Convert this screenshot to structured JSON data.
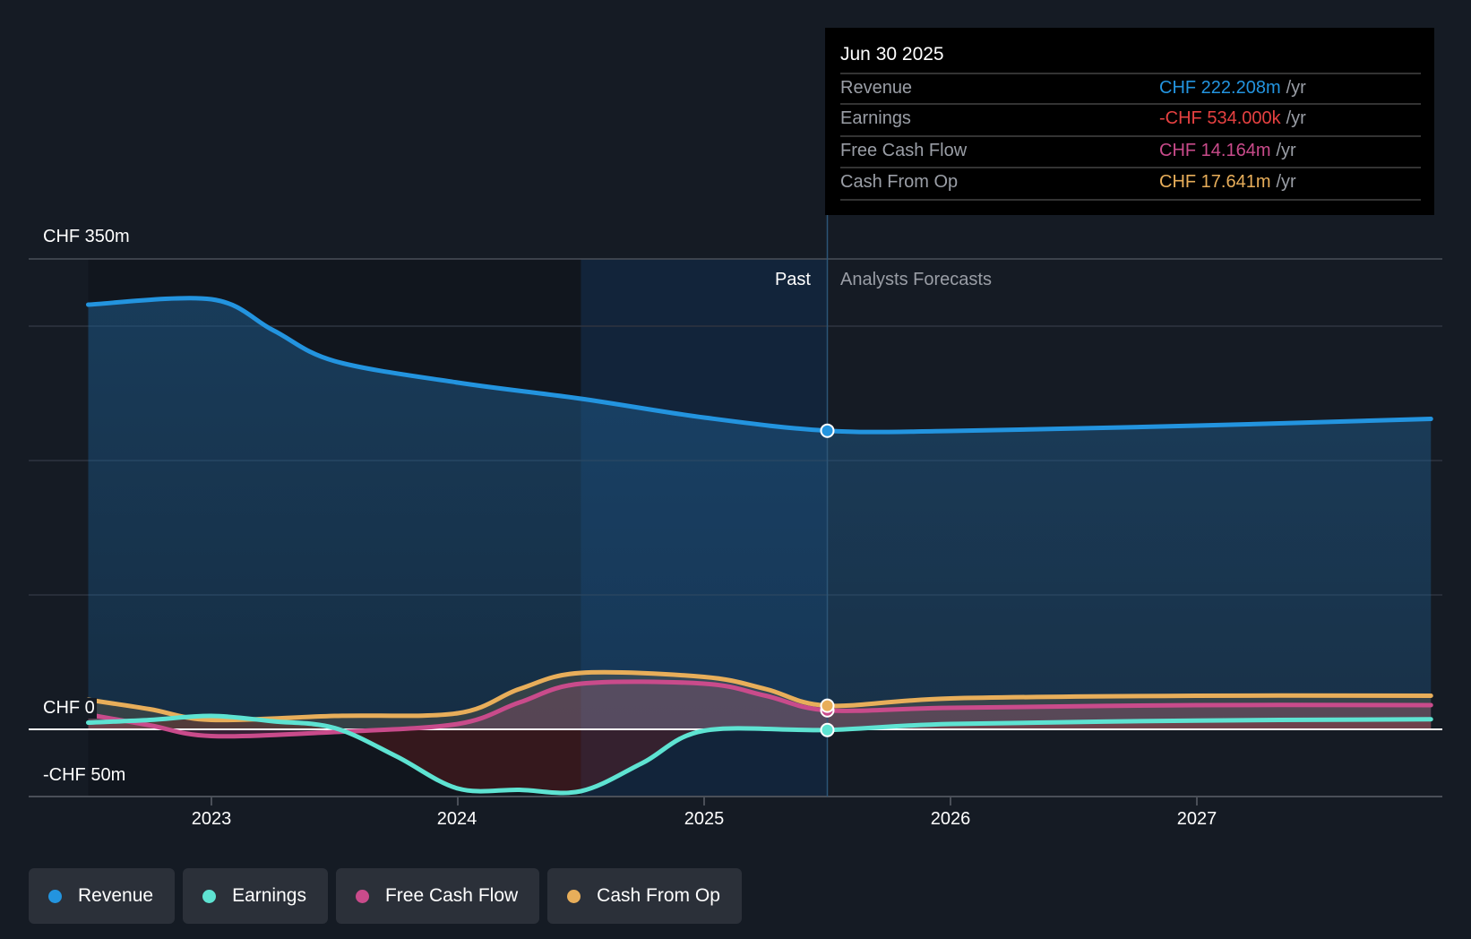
{
  "tooltip": {
    "date": "Jun 30 2025",
    "rows": [
      {
        "label": "Revenue",
        "value": "CHF 222.208m",
        "unit": "/yr",
        "color": "#2394df"
      },
      {
        "label": "Earnings",
        "value": "-CHF 534.000k",
        "unit": "/yr",
        "color": "#e64141"
      },
      {
        "label": "Free Cash Flow",
        "value": "CHF 14.164m",
        "unit": "/yr",
        "color": "#c94b8b"
      },
      {
        "label": "Cash From Op",
        "value": "CHF 17.641m",
        "unit": "/yr",
        "color": "#e8ae5a"
      }
    ]
  },
  "segments": {
    "past": "Past",
    "forecast": "Analysts Forecasts"
  },
  "chart_data": {
    "type": "line",
    "title": "",
    "xlabel": "",
    "ylabel": "",
    "ylim": [
      -50,
      350
    ],
    "xlim": [
      2022.3,
      2027.95
    ],
    "y_tick_labels": [
      "CHF 350m",
      "CHF 0",
      "-CHF 50m"
    ],
    "x_ticks": [
      2023,
      2024,
      2025,
      2026,
      2027
    ],
    "x_tick_labels": [
      "2023",
      "2024",
      "2025",
      "2026",
      "2027"
    ],
    "past_end": 2025.5,
    "highlight_start": 2024.5,
    "legend_position": "bottom-left",
    "series": [
      {
        "name": "Revenue",
        "color": "#2394df",
        "x": [
          2022.5,
          2023.0,
          2023.25,
          2023.5,
          2024.0,
          2024.5,
          2025.0,
          2025.5,
          2026.0,
          2027.0,
          2027.95
        ],
        "values": [
          316,
          320,
          297,
          274,
          258,
          246,
          232,
          222.2,
          222,
          226,
          231
        ]
      },
      {
        "name": "Earnings",
        "color": "#5ee3d2",
        "x": [
          2022.5,
          2022.75,
          2023.0,
          2023.25,
          2023.5,
          2023.75,
          2024.0,
          2024.25,
          2024.5,
          2024.75,
          2025.0,
          2025.5,
          2026.0,
          2027.0,
          2027.95
        ],
        "values": [
          5,
          7,
          10,
          6,
          1,
          -20,
          -44,
          -45,
          -46,
          -25,
          -1,
          -0.5,
          4,
          6.5,
          7.5
        ]
      },
      {
        "name": "Free Cash Flow",
        "color": "#c94b8b",
        "x": [
          2022.5,
          2022.75,
          2023.0,
          2023.5,
          2024.0,
          2024.25,
          2024.5,
          2025.0,
          2025.25,
          2025.5,
          2026.0,
          2027.0,
          2027.95
        ],
        "values": [
          11,
          3,
          -5,
          -2,
          4,
          20,
          34,
          34,
          25,
          14.2,
          16,
          18,
          18
        ]
      },
      {
        "name": "Cash From Op",
        "color": "#e8ae5a",
        "x": [
          2022.5,
          2022.75,
          2023.0,
          2023.5,
          2024.0,
          2024.25,
          2024.5,
          2025.0,
          2025.25,
          2025.5,
          2026.0,
          2027.0,
          2027.95
        ],
        "values": [
          22,
          15,
          7,
          10,
          12,
          30,
          42,
          39,
          30,
          17.6,
          23,
          25,
          25
        ]
      }
    ]
  },
  "legend": [
    "Revenue",
    "Earnings",
    "Free Cash Flow",
    "Cash From Op"
  ]
}
